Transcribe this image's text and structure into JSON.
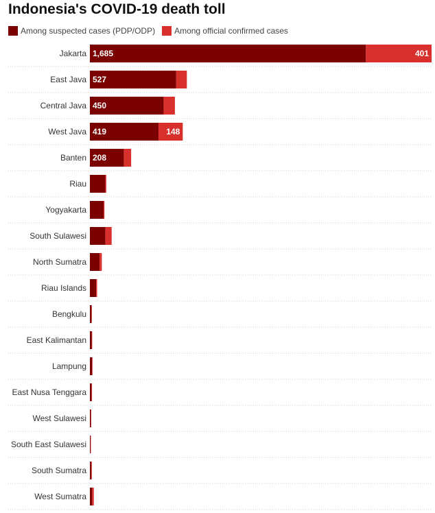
{
  "chart_data": {
    "type": "bar",
    "orientation": "horizontal",
    "stacked": true,
    "title": "Indonesia's COVID-19 death toll",
    "legend_position": "top-left",
    "grid": false,
    "xlim": [
      0,
      2086
    ],
    "categories": [
      "Jakarta",
      "East Java",
      "Central Java",
      "West Java",
      "Banten",
      "Riau",
      "Yogyakarta",
      "South Sulawesi",
      "North Sumatra",
      "Riau Islands",
      "Bengkulu",
      "East Kalimantan",
      "Lampung",
      "East Nusa Tenggara",
      "West Sulawesi",
      "South East Sulawesi",
      "South Sumatra",
      "West Sumatra"
    ],
    "series": [
      {
        "name": "Among suspected cases (PDP/ODP)",
        "color": "#7b0000",
        "values": [
          1685,
          527,
          450,
          419,
          208,
          94,
          84,
          94,
          59,
          38,
          10,
          12,
          14,
          10,
          6,
          4,
          8,
          14
        ],
        "labels": [
          "1,685",
          "527",
          "450",
          "419",
          "208",
          "",
          "",
          "",
          "",
          "",
          "",
          "",
          "",
          "",
          "",
          "",
          "",
          ""
        ]
      },
      {
        "name": "Among official confirmed cases",
        "color": "#d8302c",
        "values": [
          401,
          65,
          69,
          148,
          44,
          6,
          5,
          39,
          14,
          6,
          2,
          2,
          2,
          3,
          2,
          2,
          4,
          10
        ],
        "labels": [
          "401",
          "",
          "",
          "148",
          "",
          "",
          "",
          "",
          "",
          "",
          "",
          "",
          "",
          "",
          "",
          "",
          "",
          ""
        ]
      }
    ]
  }
}
